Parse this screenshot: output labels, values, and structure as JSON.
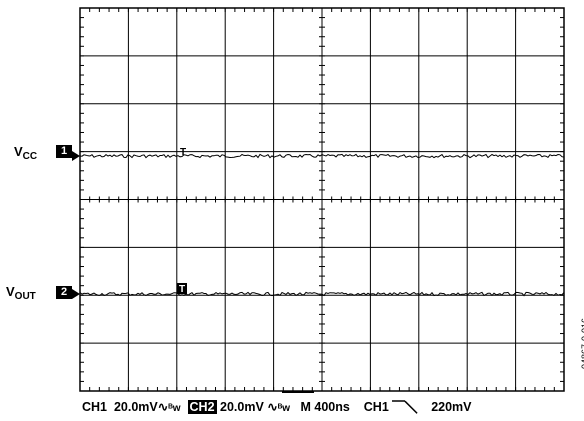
{
  "chart_data": {
    "type": "line",
    "grid": {
      "x_divisions": 10,
      "y_divisions": 8
    },
    "series": [
      {
        "name": "VCC",
        "channel_marker": "1",
        "trace": "flat noise ~constant level",
        "color": "#000000"
      },
      {
        "name": "VOUT",
        "channel_marker": "2",
        "trace": "flat noise ~constant level",
        "color": "#000000"
      }
    ]
  },
  "labels": {
    "vcc_main": "V",
    "vcc_sub": "CC",
    "vout_main": "V",
    "vout_sub": "OUT",
    "ch1_marker": "1",
    "ch2_marker": "2",
    "trigger_marker": "T"
  },
  "readout": {
    "ch1": "CH1",
    "ch1_scale": "20.0mV",
    "bw_symbol": "ᴮw",
    "ch2": "CH2",
    "ch2_scale": "20.0mV",
    "timebase": "M 400ns",
    "trig_source": "CH1",
    "trig_level": "220mV"
  },
  "figure_id": "04867-0-016"
}
